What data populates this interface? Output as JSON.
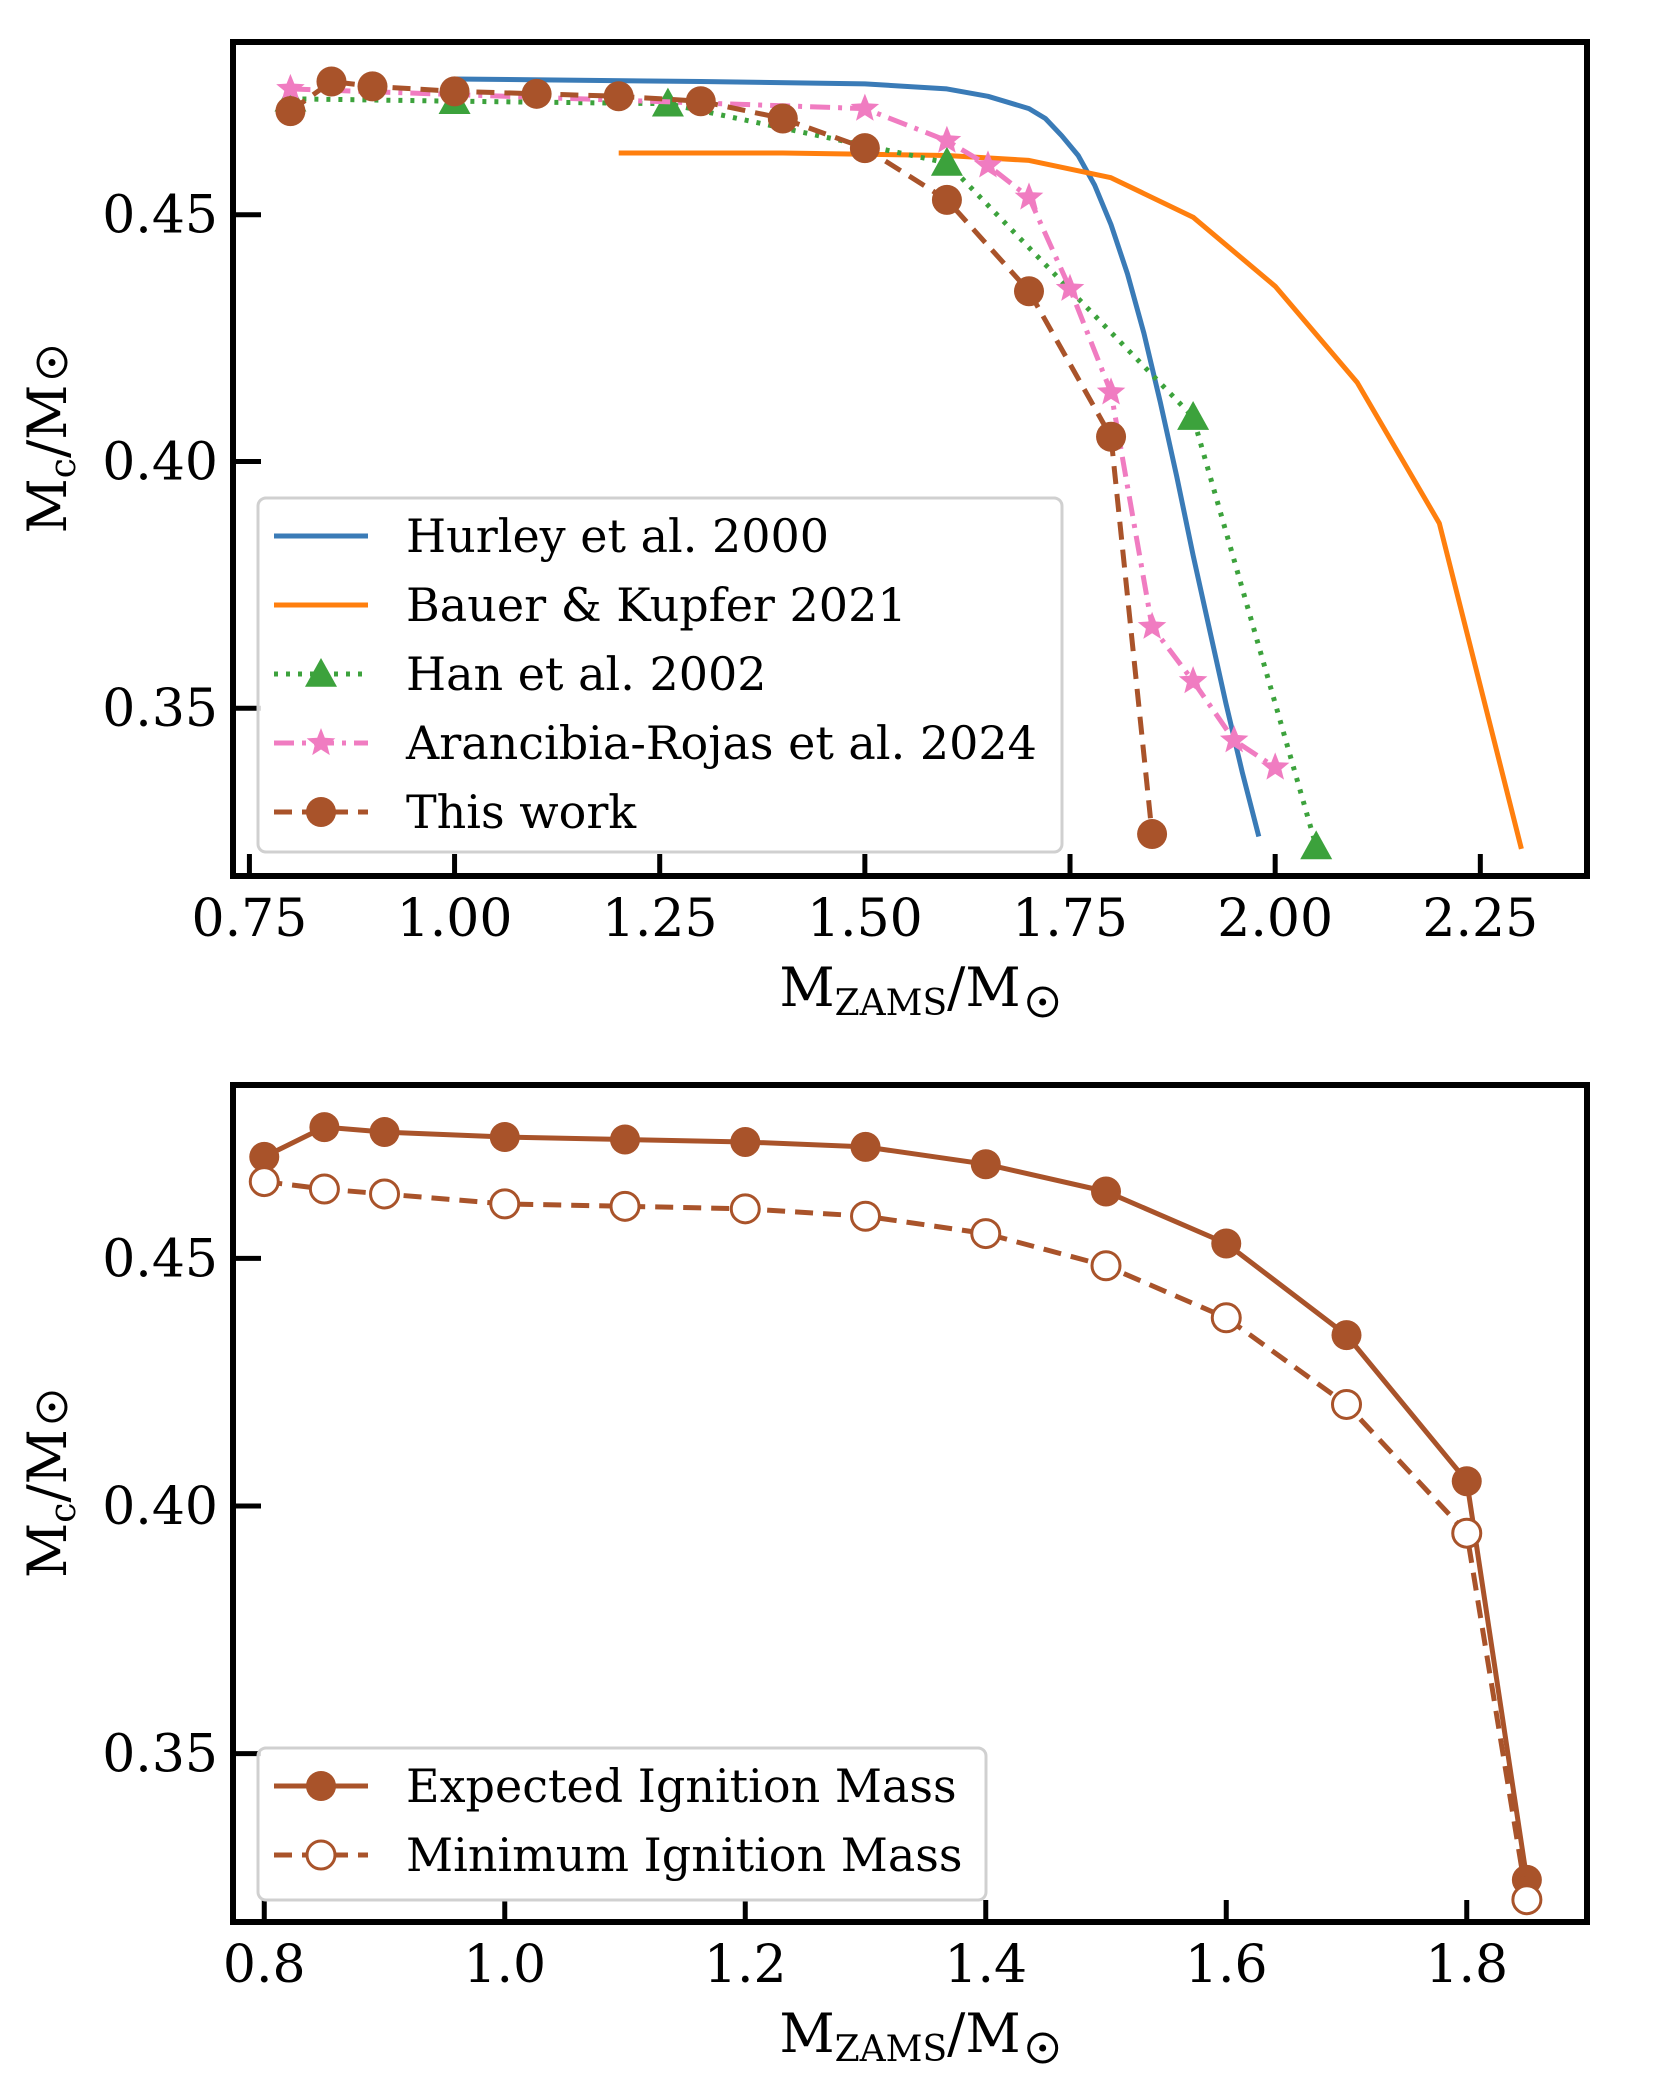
{
  "chart_data": [
    {
      "type": "line",
      "xlabel": "M_ZAMS/M_☉",
      "xlabel_main": "M",
      "xlabel_sub": "ZAMS",
      "xlabel_rest": "/M",
      "ylabel": "M_c/M_☉",
      "ylabel_main": "M",
      "ylabel_sub": "c",
      "ylabel_rest": "/M",
      "xlim": [
        0.73,
        2.38
      ],
      "ylim": [
        0.316,
        0.485
      ],
      "xticks": [
        0.75,
        1.0,
        1.25,
        1.5,
        1.75,
        2.0,
        2.25
      ],
      "xtick_labels": [
        "0.75",
        "1.00",
        "1.25",
        "1.50",
        "1.75",
        "2.00",
        "2.25"
      ],
      "yticks": [
        0.35,
        0.4,
        0.45
      ],
      "ytick_labels": [
        "0.35",
        "0.40",
        "0.45"
      ],
      "legend_position": "lower-left",
      "series": [
        {
          "name": "Hurley et al. 2000",
          "color": "#3a7bb7",
          "style": "solid",
          "marker": "none",
          "x": [
            1.0,
            1.3,
            1.5,
            1.6,
            1.65,
            1.7,
            1.72,
            1.74,
            1.76,
            1.78,
            1.8,
            1.82,
            1.84,
            1.86,
            1.88,
            1.9,
            1.92,
            1.94,
            1.96,
            1.98
          ],
          "y": [
            0.4775,
            0.477,
            0.4765,
            0.4755,
            0.474,
            0.4715,
            0.4695,
            0.466,
            0.462,
            0.456,
            0.448,
            0.438,
            0.426,
            0.412,
            0.397,
            0.381,
            0.366,
            0.351,
            0.337,
            0.324
          ]
        },
        {
          "name": "Bauer & Kupfer 2021",
          "color": "#ff7f0e",
          "style": "solid",
          "marker": "none",
          "x": [
            1.2,
            1.4,
            1.6,
            1.7,
            1.8,
            1.9,
            2.0,
            2.1,
            2.2,
            2.3
          ],
          "y": [
            0.4625,
            0.4625,
            0.462,
            0.461,
            0.4575,
            0.4495,
            0.4355,
            0.416,
            0.3875,
            0.3215
          ]
        },
        {
          "name": "Han et al. 2002",
          "color": "#3ca23c",
          "style": "dotted",
          "marker": "triangle",
          "x": [
            0.8,
            1.0,
            1.26,
            1.6,
            1.9,
            2.05
          ],
          "y": [
            0.4735,
            0.473,
            0.4725,
            0.4605,
            0.409,
            0.322
          ]
        },
        {
          "name": "Arancibia-Rojas et al. 2024",
          "color": "#f07cc1",
          "style": "dashdot",
          "marker": "star",
          "x": [
            0.8,
            1.5,
            1.6,
            1.65,
            1.7,
            1.75,
            1.8,
            1.85,
            1.9,
            1.95,
            2.0
          ],
          "y": [
            0.4755,
            0.4715,
            0.465,
            0.46,
            0.4535,
            0.435,
            0.414,
            0.3665,
            0.3555,
            0.3435,
            0.338
          ]
        },
        {
          "name": "This work",
          "color": "#a9532a",
          "style": "dashed",
          "marker": "circle",
          "x": [
            0.8,
            0.85,
            0.9,
            1.0,
            1.1,
            1.2,
            1.3,
            1.4,
            1.5,
            1.6,
            1.7,
            1.8,
            1.85
          ],
          "y": [
            0.471,
            0.477,
            0.476,
            0.475,
            0.4745,
            0.474,
            0.473,
            0.4695,
            0.4635,
            0.453,
            0.4345,
            0.405,
            0.3245
          ]
        }
      ]
    },
    {
      "type": "line",
      "xlabel": "M_ZAMS/M_☉",
      "xlabel_main": "M",
      "xlabel_sub": "ZAMS",
      "xlabel_rest": "/M",
      "ylabel": "M_c/M_☉",
      "ylabel_main": "M",
      "ylabel_sub": "c",
      "ylabel_rest": "/M",
      "xlim": [
        0.774,
        1.9
      ],
      "ylim": [
        0.316,
        0.485
      ],
      "xticks": [
        0.8,
        1.0,
        1.2,
        1.4,
        1.6,
        1.8
      ],
      "xtick_labels": [
        "0.8",
        "1.0",
        "1.2",
        "1.4",
        "1.6",
        "1.8"
      ],
      "yticks": [
        0.35,
        0.4,
        0.45
      ],
      "ytick_labels": [
        "0.35",
        "0.40",
        "0.45"
      ],
      "legend_position": "lower-left",
      "series": [
        {
          "name": "Expected Ignition Mass",
          "color": "#a9532a",
          "style": "solid",
          "marker": "circle",
          "x": [
            0.8,
            0.85,
            0.9,
            1.0,
            1.1,
            1.2,
            1.3,
            1.4,
            1.5,
            1.6,
            1.7,
            1.8,
            1.85
          ],
          "y": [
            0.4705,
            0.4765,
            0.4755,
            0.4745,
            0.474,
            0.4735,
            0.4725,
            0.469,
            0.4635,
            0.453,
            0.4345,
            0.405,
            0.3245
          ]
        },
        {
          "name": "Minimum Ignition Mass",
          "color": "#a9532a",
          "style": "dashed",
          "marker": "open-circle",
          "x": [
            0.8,
            0.85,
            0.9,
            1.0,
            1.1,
            1.2,
            1.3,
            1.4,
            1.5,
            1.6,
            1.7,
            1.8,
            1.85
          ],
          "y": [
            0.4655,
            0.464,
            0.463,
            0.461,
            0.4605,
            0.46,
            0.4585,
            0.455,
            0.4485,
            0.438,
            0.4205,
            0.3945,
            0.3205
          ]
        }
      ]
    }
  ]
}
